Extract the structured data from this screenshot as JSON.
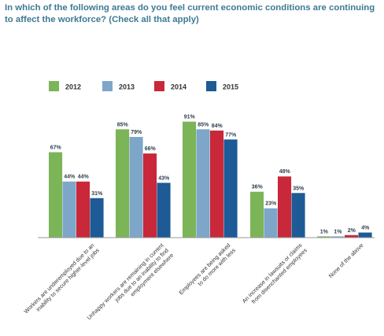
{
  "title_lines": [
    "In which of the following areas do you feel current economic conditions are continuing",
    "to affect the workforce? (Check all that apply)"
  ],
  "chart_data": {
    "type": "bar",
    "title": "In which of the following areas do you feel current economic conditions are continuing to affect the workforce? (Check all that apply)",
    "categories": [
      [
        "Workers are underemployed due to an",
        "inability to secure higher-level jobs"
      ],
      [
        "Unhappy workers are remaining in current",
        "jobs due to an inability to find",
        "employment elsewhere"
      ],
      [
        "Employees are being asked",
        "to do more with less"
      ],
      [
        "An increase in lawsuits or claims",
        "from disenchanted employees"
      ],
      [
        "None of the above"
      ]
    ],
    "series": [
      {
        "name": "2012",
        "color": "#7cb458",
        "values": [
          67,
          85,
          91,
          36,
          1
        ]
      },
      {
        "name": "2013",
        "color": "#7da6c8",
        "values": [
          44,
          79,
          85,
          23,
          1
        ]
      },
      {
        "name": "2014",
        "color": "#c8283a",
        "values": [
          44,
          66,
          84,
          48,
          2
        ]
      },
      {
        "name": "2015",
        "color": "#1d5a96",
        "values": [
          31,
          43,
          77,
          35,
          4
        ]
      }
    ],
    "value_suffix": "%",
    "ylim": [
      0,
      100
    ],
    "grid": false,
    "legend_position": "top"
  }
}
